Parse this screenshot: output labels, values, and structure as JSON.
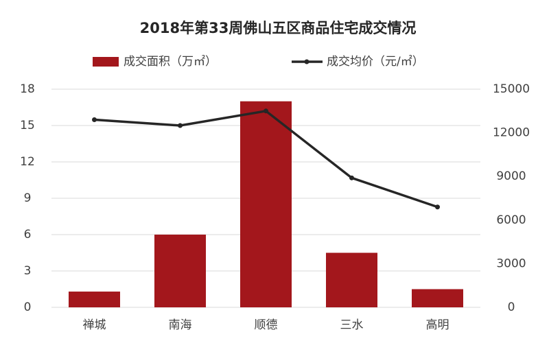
{
  "chart_data": {
    "type": "bar-line",
    "title": "2018年第33周佛山五区商品住宅成交情况",
    "categories": [
      "禅城",
      "南海",
      "顺德",
      "三水",
      "高明"
    ],
    "series": [
      {
        "name": "成交面积（万㎡）",
        "color": "#a3171c",
        "values": [
          1.3,
          6,
          17,
          4.5,
          1.5
        ]
      },
      {
        "name": "成交均价（元/㎡）",
        "color": "#262626",
        "axis": "y2",
        "values": [
          12900,
          12500,
          13500,
          8900,
          6900
        ]
      }
    ],
    "ylim": [
      0,
      18
    ],
    "yticks": [
      0,
      3,
      6,
      9,
      12,
      15,
      18
    ],
    "y2lim": [
      0,
      15000
    ],
    "y2ticks": [
      0,
      3000,
      6000,
      9000,
      12000,
      15000
    ],
    "grid": true
  }
}
